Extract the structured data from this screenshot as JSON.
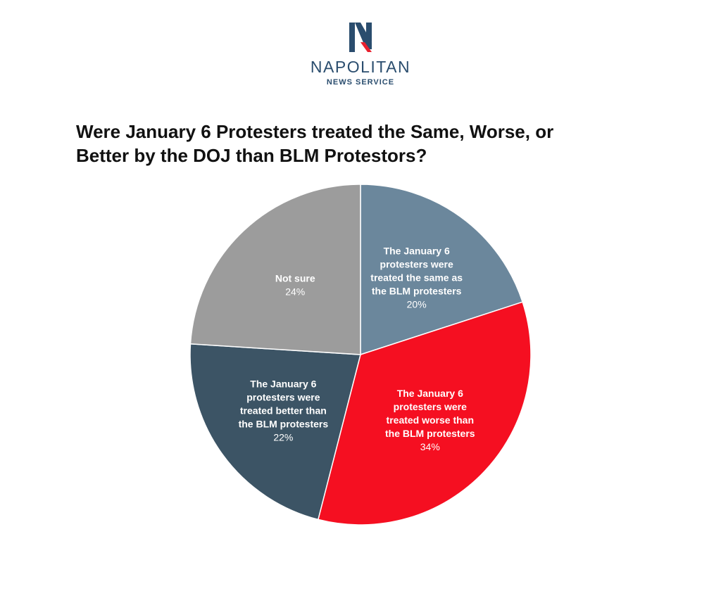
{
  "logo": {
    "name": "NAPOLITAN",
    "subtitle": "NEWS SERVICE",
    "mark_letter": "N"
  },
  "chart_data": {
    "type": "pie",
    "title": "Were January 6 Protesters treated the Same, Worse, or Better by the DOJ than BLM Protestors?",
    "slices": [
      {
        "label_lines": [
          "The January 6",
          "protesters were",
          "treated the same as",
          "the BLM protesters"
        ],
        "value": 20,
        "value_label": "20%",
        "color": "#6b879c"
      },
      {
        "label_lines": [
          "The January 6",
          "protesters were",
          "treated worse than",
          "the BLM protesters"
        ],
        "value": 34,
        "value_label": "34%",
        "color": "#f50f21"
      },
      {
        "label_lines": [
          "The January 6",
          "protesters were",
          "treated better than",
          "the BLM protesters"
        ],
        "value": 22,
        "value_label": "22%",
        "color": "#3c5465"
      },
      {
        "label_lines": [
          "Not sure"
        ],
        "value": 24,
        "value_label": "24%",
        "color": "#9c9c9c"
      }
    ]
  }
}
